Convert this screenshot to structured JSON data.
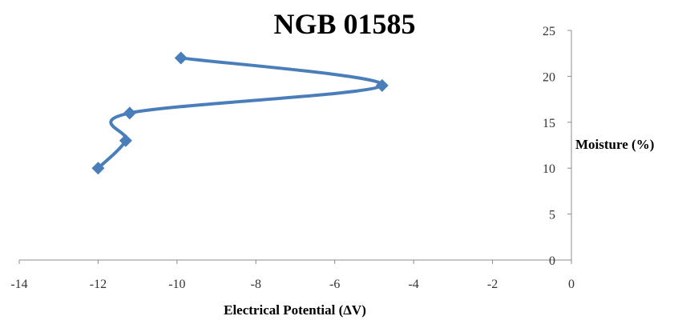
{
  "chart_data": {
    "type": "line",
    "title": "NGB 01585",
    "xlabel": "Electrical Potential (ΔV)",
    "ylabel": "Moisture (%)",
    "xlim": [
      -14,
      0
    ],
    "ylim": [
      0,
      25
    ],
    "x_ticks": [
      "-14",
      "-12",
      "-10",
      "-8",
      "-6",
      "-4",
      "-2",
      "0"
    ],
    "y_ticks": [
      "0",
      "5",
      "10",
      "15",
      "20",
      "25"
    ],
    "grid": false,
    "legend": "none",
    "smooth": true,
    "marker": "diamond",
    "color": "#4A7EBB",
    "series": [
      {
        "x": [
          -12.0,
          -11.3,
          -11.2,
          -4.8,
          -9.9
        ],
        "y": [
          10,
          13,
          16,
          19,
          22
        ]
      }
    ]
  }
}
